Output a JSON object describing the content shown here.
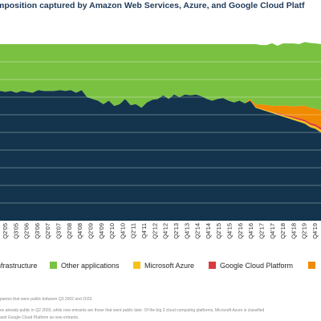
{
  "page": {
    "title": "mposition captured by Amazon Web Services, Azure, and Google Cloud Platf",
    "footnotes": [
      "panies that were public between Q3 2002 and 2023.",
      "es already public in Q2 2003, while new entrants are those that went public later. Of the big 3 cloud computing platforms, Microsoft Azure is classified",
      "and Google Cloud Platform as new entrants."
    ]
  },
  "colors": {
    "infrastructure": "#13344c",
    "other_applications": "#7ac142",
    "microsoft_azure": "#f6c21a",
    "google_cloud_platform": "#d93b3f",
    "aws": "#f08a00",
    "grid": "#ffffff",
    "text": "#2a2a2a"
  },
  "legend": [
    {
      "label": "nfrastructure",
      "color_key": "infrastructure"
    },
    {
      "label": "Other applications",
      "color_key": "other_applications"
    },
    {
      "label": "Microsoft Azure",
      "color_key": "microsoft_azure"
    },
    {
      "label": "Google Cloud Platform",
      "color_key": "google_cloud_platform"
    },
    {
      "label": "",
      "color_key": "aws"
    }
  ],
  "chart_data": {
    "type": "area",
    "stacked": true,
    "title": "mposition captured by Amazon Web Services, Azure, and Google Cloud Platf",
    "xlabel": "",
    "ylabel": "",
    "ylim": [
      0,
      100
    ],
    "grid": true,
    "legend_position": "bottom",
    "x_tick_labels": [
      "Q2'05",
      "Q3'05",
      "Q2'06",
      "Q3'06",
      "Q2'07",
      "Q3'07",
      "Q2'08",
      "Q4'08",
      "Q2'09",
      "Q4'09",
      "Q2'10",
      "Q4'10",
      "Q2'11",
      "Q4'11",
      "Q2'12",
      "Q4'12",
      "Q2'13",
      "Q4'13",
      "Q2'14",
      "Q4'14",
      "Q2'15",
      "Q4'15",
      "Q2'16",
      "Q4'16",
      "Q2'17",
      "Q4'17",
      "Q2'18",
      "Q4'18",
      "Q2'19",
      "Q4'19"
    ],
    "series": [
      {
        "name": "nfrastructure",
        "color_key": "infrastructure",
        "values": [
          73.5,
          73,
          73.5,
          72.5,
          73.5,
          73,
          72.5,
          74,
          73.5,
          73.5,
          73.5,
          74,
          73.5,
          74,
          72.5,
          74,
          70,
          69,
          68,
          66,
          68,
          65,
          66,
          69,
          65.5,
          66,
          64,
          67,
          68.5,
          69,
          71,
          69,
          71.5,
          70,
          71.5,
          71,
          71.5,
          70.5,
          69,
          68,
          69,
          69.5,
          68,
          67,
          68,
          66.5,
          68,
          64,
          63,
          62,
          61,
          60,
          59,
          58,
          57,
          56,
          55,
          53,
          52,
          50
        ]
      },
      {
        "name": "Microsoft Azure",
        "color_key": "microsoft_azure",
        "values": [
          0,
          0,
          0,
          0,
          0,
          0,
          0,
          0,
          0,
          0,
          0,
          0,
          0,
          0,
          0,
          0,
          0,
          0,
          0,
          0,
          0,
          0,
          0,
          0,
          0,
          0,
          0,
          0,
          0,
          0,
          0,
          0,
          0,
          0,
          0,
          0,
          0,
          0,
          0,
          0,
          0,
          0,
          0,
          0,
          0,
          0,
          0.2,
          0.3,
          0.4,
          0.5,
          0.6,
          0.7,
          0.8,
          0.9,
          1,
          1.1,
          1.2,
          1.3,
          1.4,
          1.5
        ]
      },
      {
        "name": "Google Cloud Platform",
        "color_key": "google_cloud_platform",
        "values": [
          0,
          0,
          0,
          0,
          0,
          0,
          0,
          0,
          0,
          0,
          0,
          0,
          0,
          0,
          0,
          0,
          0,
          0,
          0,
          0,
          0,
          0,
          0,
          0,
          0,
          0,
          0,
          0,
          0,
          0,
          0,
          0,
          0,
          0,
          0,
          0,
          0,
          0,
          0,
          0,
          0,
          0,
          0,
          0,
          0,
          0,
          0,
          0,
          0,
          0,
          0,
          0.3,
          0.5,
          0.6,
          0.8,
          0.9,
          1,
          1.1,
          1.2,
          1.3
        ]
      },
      {
        "name": "",
        "color_key": "aws",
        "values": [
          0,
          0,
          0,
          0,
          0,
          0,
          0,
          0,
          0,
          0,
          0,
          0,
          0,
          0,
          0,
          0,
          0,
          0,
          0,
          0,
          0,
          0,
          0,
          0,
          0,
          0,
          0,
          0,
          0,
          0,
          0,
          0,
          0,
          0,
          0,
          0,
          0,
          0,
          0,
          0,
          0,
          0,
          0,
          0,
          0,
          0,
          0.8,
          1.5,
          2.5,
          3,
          3.5,
          4,
          5,
          5.5,
          6,
          7,
          8,
          8.5,
          9,
          9.5
        ]
      },
      {
        "name": "Other applications",
        "color_key": "other_applications",
        "values": [
          26.5,
          27,
          26.5,
          27.5,
          26.5,
          27,
          27.5,
          26,
          26.5,
          26.5,
          26.5,
          26,
          26.5,
          26,
          27.5,
          26,
          30,
          31,
          32,
          34,
          32,
          35,
          34,
          31,
          34.5,
          34,
          36,
          33,
          31.5,
          31,
          29,
          31,
          28.5,
          30,
          28.5,
          29,
          28.5,
          29.5,
          31,
          32,
          31,
          30.5,
          32,
          33,
          32,
          33.5,
          31,
          34.2,
          33.6,
          34,
          35.4,
          34.1,
          35.1,
          35.4,
          35.6,
          35,
          36,
          36.8,
          36.8,
          37.7
        ]
      }
    ]
  }
}
